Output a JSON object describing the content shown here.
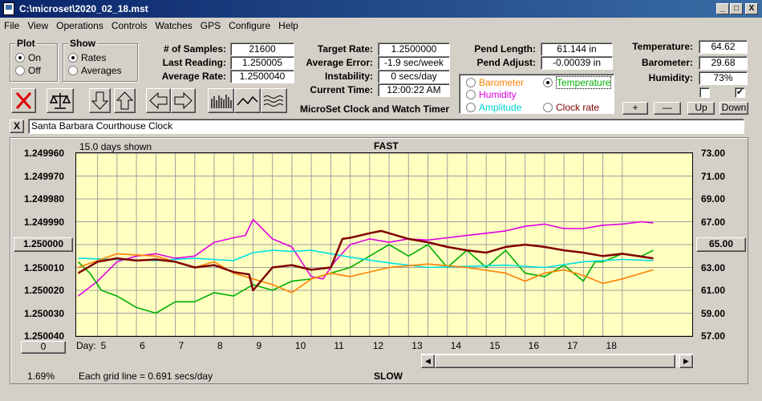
{
  "window": {
    "title": "C:\\microset\\2020_02_18.mst",
    "min": "_",
    "max": "□",
    "close": "X"
  },
  "menu": [
    "File",
    "View",
    "Operations",
    "Controls",
    "Watches",
    "GPS",
    "Configure",
    "Help"
  ],
  "plot_group": {
    "title": "Plot",
    "on": "On",
    "off": "Off",
    "selected": "On"
  },
  "show_group": {
    "title": "Show",
    "rates": "Rates",
    "averages": "Averages",
    "selected": "Rates"
  },
  "stats": {
    "samples_label": "# of Samples:",
    "samples": "21600",
    "last_label": "Last Reading:",
    "last": "1.250005",
    "avg_label": "Average Rate:",
    "avg": "1.2500040",
    "target_label": "Target Rate:",
    "target": "1.2500000",
    "err_label": "Average Error:",
    "err": "-1.9 sec/week",
    "inst_label": "Instability:",
    "inst": "0 secs/day",
    "time_label": "Current Time:",
    "time": "12:00:22 AM",
    "pend_len_label": "Pend Length:",
    "pend_len": "61.144 in",
    "pend_adj_label": "Pend Adjust:",
    "pend_adj": "-0.00039 in",
    "temp_label": "Temperature:",
    "temp": "64.62",
    "baro_label": "Barometer:",
    "baro": "29.68",
    "hum_label": "Humidity:",
    "hum": "73%"
  },
  "app_caption": "MicroSet Clock and Watch Timer",
  "sensors": {
    "barometer": "Barometer",
    "temperature": "Temperature",
    "humidity": "Humidity",
    "amplitude": "Amplitude",
    "clock_rate": "Clock rate",
    "selected": "Temperature"
  },
  "adjust_buttons": {
    "plus": "+",
    "minus": "—",
    "up": "Up",
    "down": "Down"
  },
  "clock_name": "Santa Barbara Courthouse Clock",
  "clear_btn": "X",
  "plot_header": {
    "days_shown": "15.0 days shown",
    "fast": "FAST",
    "slow": "SLOW",
    "grid_note": "Each grid line = 0.691 secs/day",
    "day_label": "Day:"
  },
  "left_box": "1.250000",
  "right_box": "65.00",
  "bottom_left_box": "0",
  "percent": "1.69%",
  "colors": {
    "barometer": "#ff8000",
    "temperature": "#00b000",
    "humidity": "#e000e0",
    "amplitude": "#00e0e0",
    "clock_rate": "#800000",
    "plot_bg": "#ffffc0"
  },
  "chart_data": {
    "type": "line",
    "xlabel": "Day:",
    "x_ticks": [
      5,
      6,
      7,
      8,
      9,
      10,
      11,
      12,
      13,
      14,
      15,
      16,
      17,
      18
    ],
    "xlim": [
      3.95,
      19.8
    ],
    "y_left_ticks": [
      "1.249960",
      "1.249970",
      "1.249980",
      "1.249990",
      "1.250000",
      "1.250010",
      "1.250020",
      "1.250030",
      "1.250040"
    ],
    "y_left_lim": [
      1.25004,
      1.24996
    ],
    "y_right_ticks": [
      "73.00",
      "71.00",
      "69.00",
      "67.00",
      "65.00",
      "63.00",
      "61.00",
      "59.00",
      "57.00"
    ],
    "y_right_lim": [
      57,
      73
    ],
    "series": [
      {
        "name": "Humidity",
        "color": "#e000e0",
        "x": [
          4,
          4.5,
          5,
          5.5,
          6,
          6.5,
          7,
          7.5,
          8,
          8.3,
          8.5,
          9,
          9.5,
          10,
          10.3,
          10.6,
          11,
          11.5,
          12,
          12.5,
          13,
          13.5,
          14,
          14.5,
          15,
          15.5,
          16,
          16.5,
          17,
          17.5,
          18,
          18.5,
          18.8
        ],
        "y": [
          60.5,
          61.8,
          63.5,
          64,
          64.2,
          63.8,
          64,
          65.2,
          65.6,
          65.8,
          67.2,
          65.5,
          64.8,
          62.2,
          62.0,
          63.5,
          65.0,
          65.5,
          65.2,
          65.5,
          65.4,
          65.6,
          65.8,
          66.0,
          66.2,
          66.6,
          66.8,
          66.4,
          66.4,
          66.7,
          66.8,
          67.0,
          66.9
        ]
      },
      {
        "name": "Temperature",
        "color": "#00b000",
        "x": [
          4,
          4.3,
          4.6,
          5,
          5.5,
          6,
          6.5,
          7,
          7.5,
          8,
          8.5,
          9,
          9.5,
          10,
          10.5,
          11,
          11.5,
          12,
          12.5,
          13,
          13.5,
          14,
          14.5,
          15,
          15.5,
          16,
          16.5,
          17,
          17.3,
          17.5,
          18,
          18.5,
          18.8
        ],
        "y": [
          63.5,
          62.5,
          61.0,
          60.5,
          59.5,
          59.0,
          60.0,
          60.0,
          60.8,
          60.5,
          61.5,
          61.0,
          61.8,
          62.0,
          62.5,
          63.0,
          64.0,
          65.0,
          64.0,
          65.0,
          63.0,
          64.5,
          63.0,
          64.5,
          62.5,
          62.2,
          63.2,
          61.8,
          63.5,
          63.5,
          64.2,
          64.0,
          64.5
        ]
      },
      {
        "name": "Amplitude",
        "color": "#00e0e0",
        "x": [
          4,
          5,
          6,
          7,
          8,
          8.5,
          9,
          9.5,
          10,
          11,
          12,
          13,
          14,
          15,
          16,
          17,
          18,
          18.8
        ],
        "y": [
          63.8,
          63.7,
          63.6,
          63.8,
          63.6,
          64.3,
          64.5,
          64.4,
          64.5,
          63.9,
          63.4,
          63.0,
          63.1,
          63.2,
          63.0,
          63.5,
          63.7,
          63.6
        ]
      },
      {
        "name": "Barometer",
        "color": "#ff8000",
        "x": [
          4,
          5,
          6,
          7,
          7.5,
          8,
          8.5,
          9,
          9.5,
          10,
          10.5,
          11,
          12,
          13,
          14,
          15,
          15.5,
          16,
          16.5,
          17,
          17.5,
          18,
          18.5,
          18.8
        ],
        "y": [
          63.0,
          64.2,
          64.0,
          63.0,
          63.5,
          62.5,
          62.0,
          61.5,
          60.8,
          62.0,
          62.5,
          62.2,
          63.0,
          63.3,
          63.0,
          62.5,
          61.8,
          62.5,
          62.8,
          62.3,
          61.6,
          62.0,
          62.5,
          62.8
        ]
      },
      {
        "name": "Clock rate",
        "color": "#800000",
        "x": [
          4,
          4.5,
          5,
          5.5,
          6,
          6.5,
          7,
          7.5,
          8,
          8.4,
          8.5,
          9,
          9.5,
          10,
          10.5,
          10.8,
          11,
          11.5,
          11.8,
          12,
          12.5,
          13,
          13.5,
          14,
          14.5,
          15,
          15.5,
          16,
          16.5,
          17,
          17.5,
          18,
          18.8
        ],
        "y": [
          62.5,
          63.5,
          63.8,
          63.6,
          63.7,
          63.5,
          63.0,
          63.2,
          62.6,
          62.4,
          61.0,
          63.0,
          63.2,
          62.8,
          63.0,
          65.5,
          65.6,
          66.0,
          66.2,
          66.0,
          65.5,
          65.2,
          64.8,
          64.5,
          64.3,
          64.8,
          65.0,
          64.8,
          64.5,
          64.3,
          64.0,
          64.2,
          63.8
        ]
      }
    ]
  }
}
